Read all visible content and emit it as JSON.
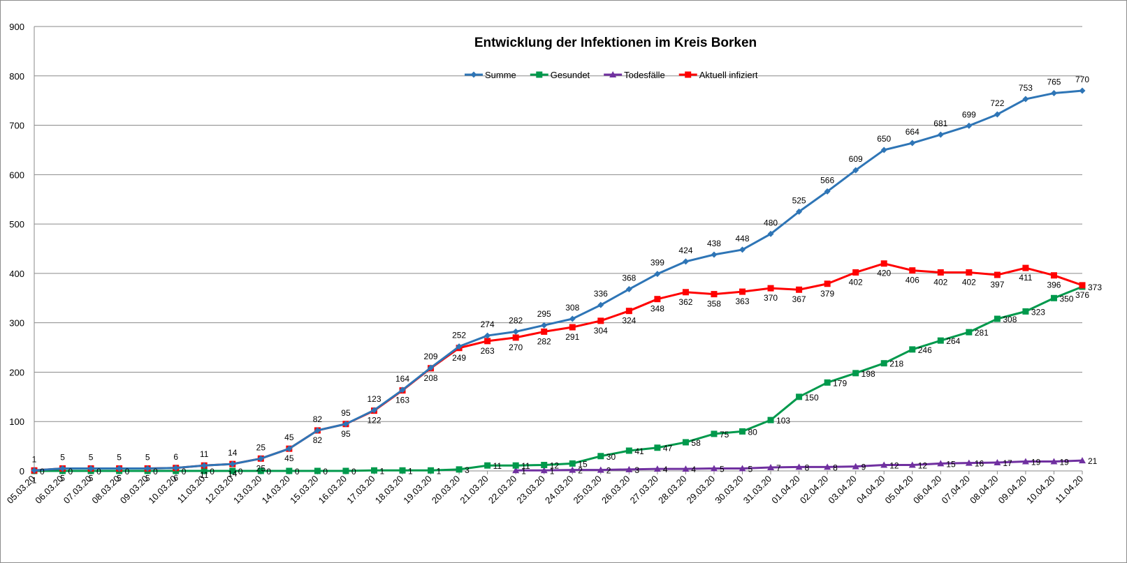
{
  "chart_data": {
    "type": "line",
    "title": "Entwicklung der Infektionen im Kreis Borken",
    "xlabel": "",
    "ylabel": "",
    "ylim": [
      0,
      900
    ],
    "yticks": [
      0,
      100,
      200,
      300,
      400,
      500,
      600,
      700,
      800,
      900
    ],
    "grid": true,
    "legend_position": "top-center",
    "categories": [
      "05.03.20",
      "06.03.20",
      "07.03.20",
      "08.03.20",
      "09.03.20",
      "10.03.20",
      "11.03.20",
      "12.03.20",
      "13.03.20",
      "14.03.20",
      "15.03.20",
      "16.03.20",
      "17.03.20",
      "18.03.20",
      "19.03.20",
      "20.03.20",
      "21.03.20",
      "22.03.20",
      "23.03.20",
      "24.03.20",
      "25.03.20",
      "26.03.20",
      "27.03.20",
      "28.03.20",
      "29.03.20",
      "30.03.20",
      "31.03.20",
      "01.04.20",
      "02.04.20",
      "03.04.20",
      "04.04.20",
      "05.04.20",
      "06.04.20",
      "07.04.20",
      "08.04.20",
      "09.04.20",
      "10.04.20",
      "11.04.20"
    ],
    "series": [
      {
        "name": "Summe",
        "color": "#2e75b6",
        "marker": "diamond",
        "values": [
          1,
          5,
          5,
          5,
          5,
          6,
          11,
          14,
          25,
          45,
          82,
          95,
          123,
          164,
          209,
          252,
          274,
          282,
          295,
          308,
          336,
          368,
          399,
          424,
          438,
          448,
          480,
          525,
          566,
          609,
          650,
          664,
          681,
          699,
          722,
          753,
          765,
          770
        ]
      },
      {
        "name": "Gesundet",
        "color": "#00994c",
        "marker": "square",
        "values": [
          0,
          0,
          0,
          0,
          0,
          0,
          0,
          0,
          0,
          0,
          0,
          0,
          1,
          1,
          1,
          3,
          11,
          11,
          12,
          15,
          30,
          41,
          47,
          58,
          75,
          80,
          103,
          150,
          179,
          198,
          218,
          246,
          264,
          281,
          308,
          323,
          350,
          373
        ]
      },
      {
        "name": "Todesfälle",
        "color": "#7030a0",
        "marker": "triangle",
        "values": [
          null,
          null,
          null,
          null,
          null,
          null,
          null,
          null,
          null,
          null,
          null,
          null,
          null,
          null,
          null,
          null,
          null,
          1,
          1,
          2,
          2,
          3,
          4,
          4,
          5,
          5,
          7,
          8,
          8,
          9,
          12,
          12,
          15,
          16,
          17,
          19,
          19,
          21
        ]
      },
      {
        "name": "Aktuell infiziert",
        "color": "#ff0000",
        "marker": "square",
        "values": [
          1,
          5,
          5,
          5,
          5,
          6,
          11,
          14,
          25,
          45,
          82,
          95,
          122,
          163,
          208,
          249,
          263,
          270,
          282,
          291,
          304,
          324,
          348,
          362,
          358,
          363,
          370,
          367,
          379,
          402,
          420,
          406,
          402,
          402,
          397,
          411,
          396,
          376
        ]
      }
    ]
  }
}
